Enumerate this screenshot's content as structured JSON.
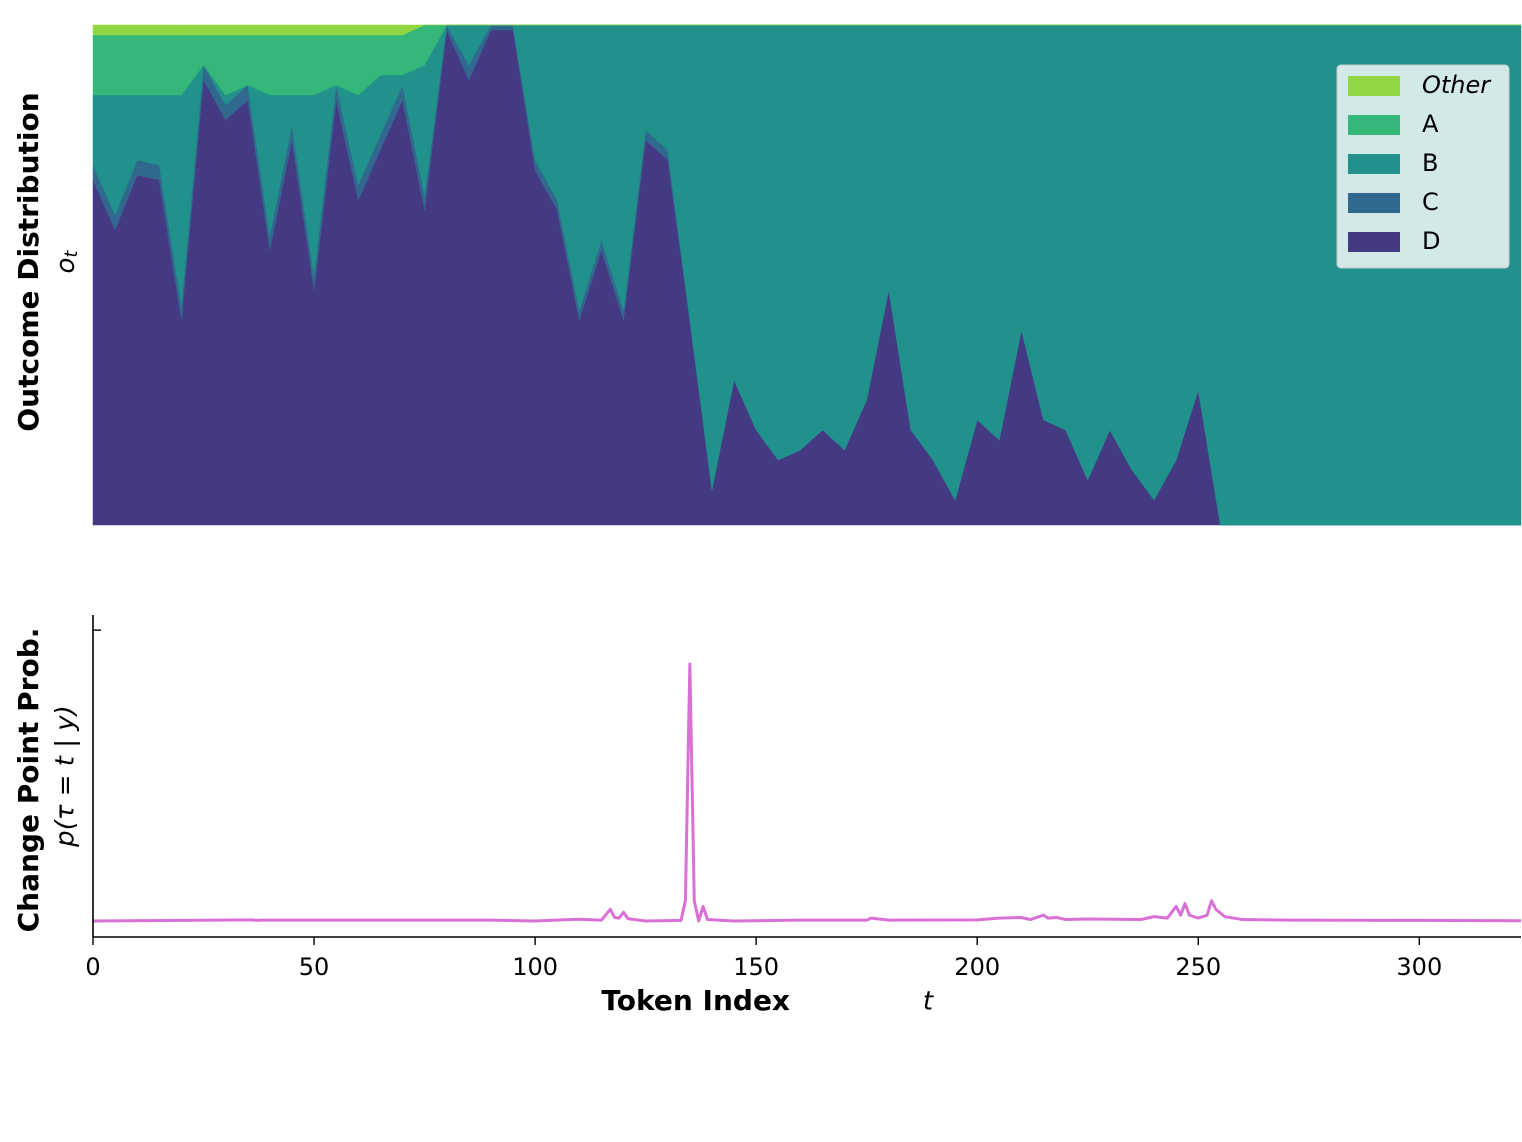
{
  "chart_data": [
    {
      "type": "stacked_area",
      "ylabel": "Outcome Distribution",
      "y_symbol": {
        "base": "o",
        "sub": "t"
      },
      "xlim": [
        0,
        323
      ],
      "ylim": [
        0,
        1
      ],
      "legend": "upper right",
      "x": [
        0,
        5,
        10,
        15,
        20,
        25,
        30,
        35,
        40,
        45,
        50,
        55,
        60,
        65,
        70,
        75,
        80,
        85,
        90,
        95,
        100,
        105,
        110,
        115,
        120,
        125,
        130,
        135,
        140,
        145,
        150,
        155,
        160,
        165,
        170,
        175,
        180,
        185,
        190,
        195,
        200,
        205,
        210,
        215,
        220,
        225,
        230,
        235,
        240,
        245,
        250,
        255,
        260,
        280,
        300,
        323
      ],
      "series": [
        {
          "name": "D",
          "color": "#443983",
          "values": [
            0.69,
            0.59,
            0.7,
            0.69,
            0.41,
            0.89,
            0.81,
            0.85,
            0.55,
            0.77,
            0.47,
            0.85,
            0.65,
            0.75,
            0.85,
            0.63,
            0.99,
            0.89,
            0.99,
            0.99,
            0.71,
            0.63,
            0.41,
            0.55,
            0.41,
            0.77,
            0.73,
            0.41,
            0.07,
            0.29,
            0.19,
            0.13,
            0.15,
            0.19,
            0.15,
            0.25,
            0.47,
            0.19,
            0.13,
            0.05,
            0.21,
            0.17,
            0.39,
            0.21,
            0.19,
            0.09,
            0.19,
            0.11,
            0.05,
            0.13,
            0.27,
            0,
            0,
            0,
            0,
            0
          ]
        },
        {
          "name": "C",
          "color": "#31688e",
          "values": [
            0.03,
            0.03,
            0.03,
            0.03,
            0.03,
            0.03,
            0.03,
            0.03,
            0.03,
            0.03,
            0.03,
            0.03,
            0.03,
            0.03,
            0.03,
            0.03,
            0.01,
            0.03,
            0.01,
            0.01,
            0.02,
            0.02,
            0.02,
            0.02,
            0.02,
            0.02,
            0.02,
            0,
            0,
            0,
            0,
            0,
            0,
            0,
            0,
            0,
            0,
            0,
            0,
            0,
            0,
            0,
            0,
            0,
            0,
            0,
            0,
            0,
            0,
            0,
            0,
            0,
            0,
            0,
            0,
            0
          ]
        },
        {
          "name": "B",
          "color": "#21918c",
          "values": [
            0.14,
            0.24,
            0.13,
            0.14,
            0.42,
            0,
            0.02,
            0,
            0.28,
            0.06,
            0.36,
            0,
            0.18,
            0.12,
            0.02,
            0.26,
            0,
            0.08,
            0,
            0,
            0.27,
            0.35,
            0.57,
            0.43,
            0.57,
            0.21,
            0.25,
            0.59,
            0.93,
            0.71,
            0.81,
            0.87,
            0.85,
            0.81,
            0.85,
            0.75,
            0.53,
            0.81,
            0.87,
            0.95,
            0.79,
            0.83,
            0.61,
            0.79,
            0.81,
            0.91,
            0.81,
            0.89,
            0.95,
            0.87,
            0.73,
            1,
            1,
            1,
            1,
            1
          ]
        },
        {
          "name": "A",
          "color": "#35b779",
          "values": [
            0.12,
            0.12,
            0.12,
            0.12,
            0.12,
            0.06,
            0.12,
            0.1,
            0.12,
            0.12,
            0.12,
            0.1,
            0.12,
            0.08,
            0.08,
            0.08,
            0,
            0,
            0,
            0,
            0,
            0,
            0,
            0,
            0,
            0,
            0,
            0,
            0,
            0,
            0,
            0,
            0,
            0,
            0,
            0,
            0,
            0,
            0,
            0,
            0,
            0,
            0,
            0,
            0,
            0,
            0,
            0,
            0,
            0,
            0,
            0,
            0,
            0,
            0,
            0
          ]
        },
        {
          "name": "Other",
          "color": "#90d743",
          "values": [
            0.02,
            0.02,
            0.02,
            0.02,
            0.02,
            0.02,
            0.02,
            0.02,
            0.02,
            0.02,
            0.02,
            0.02,
            0.02,
            0.02,
            0.02,
            0,
            0,
            0,
            0,
            0,
            0,
            0,
            0,
            0,
            0,
            0,
            0,
            0,
            0,
            0,
            0,
            0,
            0,
            0,
            0,
            0,
            0,
            0,
            0,
            0,
            0,
            0,
            0,
            0,
            0,
            0,
            0,
            0,
            0,
            0,
            0,
            0,
            0,
            0,
            0,
            0
          ]
        }
      ]
    },
    {
      "type": "line",
      "ylabel": "Change Point Prob.",
      "y_symbol": "p(τ = t | y)",
      "xlabel": "Token Index",
      "x_symbol": "t",
      "xlim": [
        0,
        323
      ],
      "ylim": [
        -0.055,
        1.052
      ],
      "xticks": [
        0,
        50,
        100,
        150,
        200,
        250,
        300
      ],
      "yticks": [
        1
      ],
      "ytick_labels": false,
      "x": [
        0,
        20,
        36,
        37,
        38,
        53,
        90,
        100,
        108,
        110,
        115,
        117,
        118,
        119,
        120,
        121,
        125,
        133,
        134,
        135,
        136,
        137,
        138,
        139,
        145,
        160,
        175,
        176,
        180,
        200,
        205,
        210,
        212,
        215,
        216,
        218,
        220,
        225,
        237,
        240,
        243,
        245,
        246,
        247,
        248,
        250,
        252,
        253,
        254,
        256,
        260,
        270,
        300,
        323
      ],
      "series": [
        {
          "name": "p",
          "color": "#da70d6",
          "values": [
            0,
            0.002,
            0.004,
            0.002,
            0.003,
            0.003,
            0.003,
            0,
            0.005,
            0.006,
            0.003,
            0.04,
            0.012,
            0.01,
            0.03,
            0.008,
            0,
            0.002,
            0.07,
            0.883,
            0.07,
            0,
            0.05,
            0.005,
            0,
            0.003,
            0.003,
            0.01,
            0.003,
            0.004,
            0.01,
            0.012,
            0.005,
            0.02,
            0.01,
            0.012,
            0.005,
            0.007,
            0.005,
            0.015,
            0.01,
            0.05,
            0.02,
            0.06,
            0.02,
            0.01,
            0.02,
            0.07,
            0.04,
            0.015,
            0.005,
            0.003,
            0.002,
            0.001
          ]
        }
      ]
    }
  ]
}
